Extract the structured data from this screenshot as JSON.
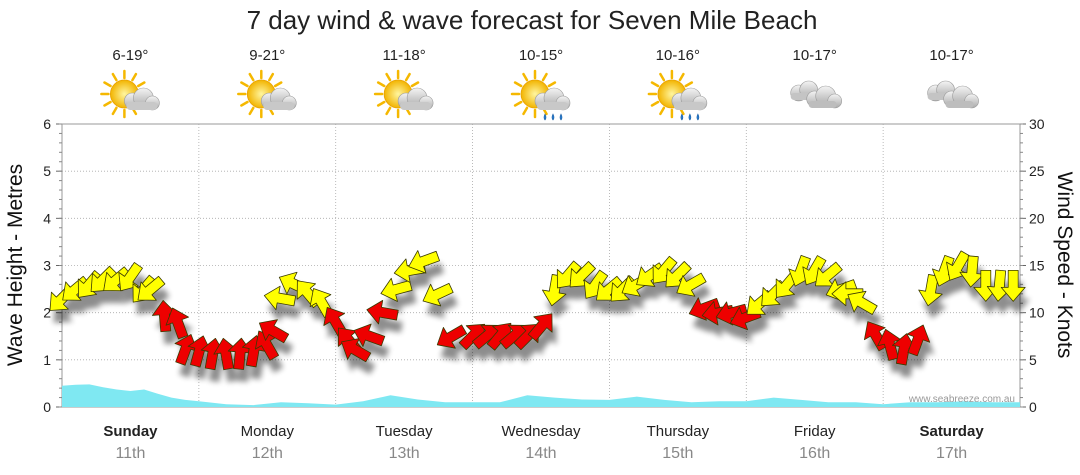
{
  "chart_data": {
    "type": "line",
    "title": "7 day wind & wave forecast for Seven Mile Beach",
    "left_axis": {
      "label": "Wave Height - Metres",
      "range": [
        0,
        6
      ],
      "ticks": [
        "0",
        "1",
        "2",
        "3",
        "4",
        "5",
        "6"
      ]
    },
    "right_axis": {
      "label": "Wind Speed - Knots",
      "range": [
        0,
        30
      ],
      "ticks": [
        "0",
        "5",
        "10",
        "15",
        "20",
        "25",
        "30"
      ]
    },
    "days": [
      {
        "name": "Sunday",
        "date": "11th",
        "temp": "6-19°",
        "weather": "partly-cloudy-icon",
        "bold": true
      },
      {
        "name": "Monday",
        "date": "12th",
        "temp": "9-21°",
        "weather": "partly-cloudy-icon",
        "bold": false
      },
      {
        "name": "Tuesday",
        "date": "13th",
        "temp": "11-18°",
        "weather": "partly-cloudy-icon",
        "bold": false
      },
      {
        "name": "Wednesday",
        "date": "14th",
        "temp": "10-15°",
        "weather": "sun-showers-icon",
        "bold": false
      },
      {
        "name": "Thursday",
        "date": "15th",
        "temp": "10-16°",
        "weather": "sun-showers-icon",
        "bold": false
      },
      {
        "name": "Friday",
        "date": "16th",
        "temp": "10-17°",
        "weather": "cloudy-icon",
        "bold": false
      },
      {
        "name": "Saturday",
        "date": "17th",
        "temp": "10-17°",
        "weather": "cloudy-icon",
        "bold": true
      }
    ],
    "wave_series": {
      "name": "Wave Height (m)",
      "color": "#7fe8f2",
      "x_days": [
        0,
        0.1,
        0.2,
        0.3,
        0.4,
        0.5,
        0.6,
        0.7,
        0.8,
        0.9,
        1.0,
        1.2,
        1.4,
        1.6,
        1.8,
        2.0,
        2.2,
        2.4,
        2.6,
        2.8,
        3.0,
        3.2,
        3.4,
        3.6,
        3.8,
        4.0,
        4.2,
        4.4,
        4.6,
        4.8,
        5.0,
        5.2,
        5.4,
        5.6,
        5.8,
        6.0,
        6.2,
        6.4,
        6.6,
        6.8,
        7.0
      ],
      "values": [
        0.45,
        0.47,
        0.48,
        0.42,
        0.37,
        0.34,
        0.37,
        0.28,
        0.2,
        0.15,
        0.12,
        0.06,
        0.04,
        0.1,
        0.08,
        0.05,
        0.12,
        0.25,
        0.16,
        0.1,
        0.1,
        0.1,
        0.25,
        0.2,
        0.16,
        0.15,
        0.22,
        0.15,
        0.1,
        0.12,
        0.12,
        0.2,
        0.15,
        0.1,
        0.1,
        0.06,
        0.1,
        0.1,
        0.12,
        0.1,
        0.1
      ]
    },
    "wind_series": {
      "name": "Wind Speed (knots)",
      "x_days": [
        0,
        0.1,
        0.2,
        0.3,
        0.4,
        0.5,
        0.6,
        0.65,
        0.75,
        0.85,
        0.9,
        1.0,
        1.1,
        1.2,
        1.3,
        1.4,
        1.5,
        1.55,
        1.6,
        1.7,
        1.8,
        1.9,
        2.0,
        2.1,
        2.15,
        2.25,
        2.35,
        2.45,
        2.55,
        2.65,
        2.75,
        2.85,
        3.0,
        3.1,
        3.2,
        3.3,
        3.4,
        3.5,
        3.6,
        3.7,
        3.8,
        3.9,
        4.0,
        4.1,
        4.2,
        4.3,
        4.4,
        4.5,
        4.6,
        4.7,
        4.8,
        4.9,
        5.0,
        5.1,
        5.2,
        5.3,
        5.4,
        5.5,
        5.6,
        5.7,
        5.75,
        5.85,
        5.95,
        6.05,
        6.15,
        6.25,
        6.35,
        6.45,
        6.55,
        6.65,
        6.75,
        6.85,
        6.95
      ],
      "knots": [
        11.5,
        12.5,
        13,
        13.5,
        13.5,
        13.8,
        12.5,
        12.5,
        9.5,
        8.8,
        6,
        5.8,
        5.5,
        5.5,
        5.5,
        5.8,
        6.5,
        8,
        11.5,
        13,
        12,
        11,
        9,
        7,
        6,
        7.5,
        10,
        12.5,
        14.5,
        15.5,
        12,
        7.5,
        7.5,
        7.5,
        7.5,
        7.5,
        7.5,
        8.5,
        12.5,
        14,
        14,
        13,
        12.5,
        12.5,
        13,
        14,
        14.5,
        14,
        13,
        10.5,
        10,
        10,
        9.5,
        11,
        12,
        13,
        14.5,
        14.5,
        14,
        12.5,
        12,
        11,
        7.5,
        6.5,
        6,
        7,
        12.5,
        14.5,
        15,
        14.5,
        13,
        13,
        13
      ],
      "dir_deg": [
        225,
        230,
        220,
        225,
        230,
        215,
        220,
        230,
        355,
        340,
        20,
        15,
        10,
        350,
        5,
        10,
        330,
        300,
        280,
        295,
        320,
        330,
        330,
        320,
        300,
        290,
        280,
        255,
        260,
        250,
        245,
        240,
        45,
        50,
        40,
        50,
        45,
        40,
        190,
        220,
        225,
        215,
        230,
        225,
        240,
        235,
        220,
        225,
        240,
        250,
        260,
        255,
        250,
        230,
        225,
        220,
        200,
        210,
        230,
        250,
        270,
        300,
        330,
        345,
        10,
        20,
        190,
        200,
        210,
        185,
        180,
        185,
        180
      ]
    },
    "credit": "www.seabreeze.com.au"
  }
}
